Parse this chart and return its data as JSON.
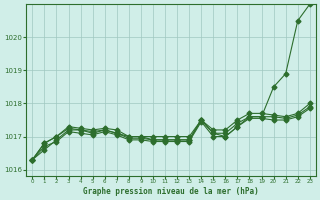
{
  "bg_color": "#d0eee8",
  "grid_color": "#a0c8c0",
  "line_color": "#2d6e2d",
  "text_color": "#2d6e2d",
  "xlabel": "Graphe pression niveau de la mer (hPa)",
  "ylim": [
    1015.8,
    1021.0
  ],
  "xlim": [
    -0.5,
    23.5
  ],
  "yticks": [
    1016,
    1017,
    1018,
    1019,
    1020
  ],
  "xticks": [
    0,
    1,
    2,
    3,
    4,
    5,
    6,
    7,
    8,
    9,
    10,
    11,
    12,
    13,
    14,
    15,
    16,
    17,
    18,
    19,
    20,
    21,
    22,
    23
  ],
  "series": [
    [
      1016.3,
      1016.6,
      1016.9,
      1017.2,
      1017.2,
      1017.1,
      1017.2,
      1017.1,
      1017.0,
      1017.0,
      1016.9,
      1016.9,
      1016.9,
      1016.9,
      1017.5,
      1017.1,
      1017.0,
      1017.3,
      1017.6,
      1017.6,
      1018.5,
      1018.9,
      1020.5,
      1021.0
    ],
    [
      1016.3,
      1016.8,
      1017.0,
      1017.3,
      1017.25,
      1017.2,
      1017.25,
      1017.2,
      1017.0,
      1017.0,
      1017.0,
      1017.0,
      1017.0,
      1017.0,
      1017.5,
      1017.2,
      1017.2,
      1017.5,
      1017.7,
      1017.7,
      1017.65,
      1017.6,
      1017.7,
      1018.0
    ],
    [
      1016.3,
      1016.8,
      1017.0,
      1017.25,
      1017.2,
      1017.15,
      1017.2,
      1017.1,
      1016.95,
      1016.95,
      1016.9,
      1016.9,
      1016.9,
      1016.9,
      1017.5,
      1017.1,
      1017.1,
      1017.4,
      1017.6,
      1017.6,
      1017.6,
      1017.55,
      1017.65,
      1017.9
    ],
    [
      1016.3,
      1016.7,
      1016.85,
      1017.15,
      1017.1,
      1017.05,
      1017.15,
      1017.05,
      1016.9,
      1016.9,
      1016.85,
      1016.85,
      1016.85,
      1016.85,
      1017.45,
      1017.0,
      1017.0,
      1017.3,
      1017.55,
      1017.55,
      1017.5,
      1017.5,
      1017.6,
      1017.85
    ]
  ]
}
